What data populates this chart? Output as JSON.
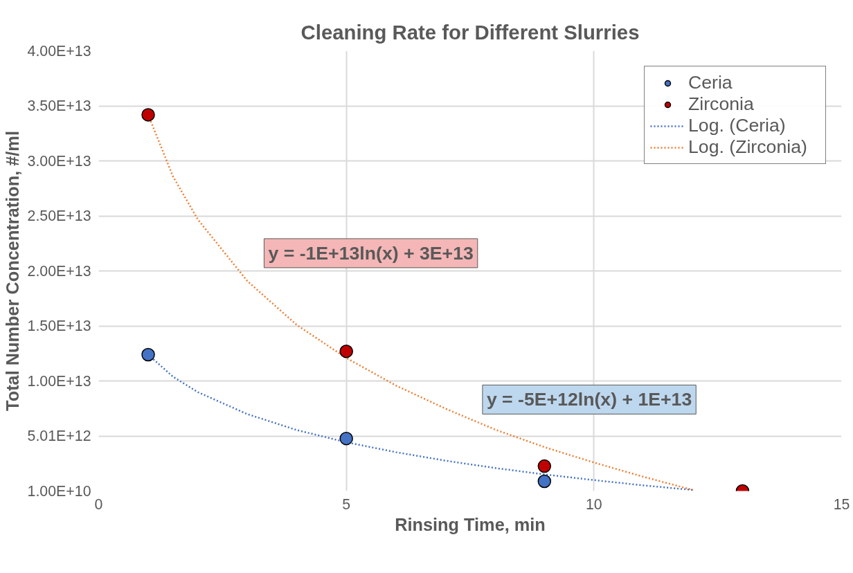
{
  "chart_data": {
    "type": "scatter",
    "title": "Cleaning Rate for Different Slurries",
    "xlabel": "Rinsing Time, min",
    "ylabel": "Total Number Concentration, #/ml",
    "xlim": [
      0,
      15
    ],
    "xticks": [
      0,
      5,
      10,
      15
    ],
    "ylim": [
      10000000000.0,
      40010000000000.0
    ],
    "yticks": [
      {
        "value": 10000000000.0,
        "label": "1.00E+10"
      },
      {
        "value": 5010000000000.0,
        "label": "5.01E+12"
      },
      {
        "value": 10010000000000.0,
        "label": "1.00E+13"
      },
      {
        "value": 15010000000000.0,
        "label": "1.50E+13"
      },
      {
        "value": 20010000000000.0,
        "label": "2.00E+13"
      },
      {
        "value": 25010000000000.0,
        "label": "2.50E+13"
      },
      {
        "value": 30010000000000.0,
        "label": "3.00E+13"
      },
      {
        "value": 35010000000000.0,
        "label": "3.50E+13"
      },
      {
        "value": 40010000000000.0,
        "label": "4.00E+13"
      }
    ],
    "grid": true,
    "legend": "top right",
    "series": [
      {
        "name": "Ceria",
        "marker": "circle",
        "color": "#4472c4",
        "x": [
          1,
          5,
          9
        ],
        "values": [
          12400000000000.0,
          4780000000000.0,
          890000000000.0
        ]
      },
      {
        "name": "Zirconia",
        "marker": "circle",
        "color": "#c00000",
        "x": [
          1,
          5,
          9,
          13
        ],
        "values": [
          34200000000000.0,
          12700000000000.0,
          2270000000000.0,
          10000000000.0
        ]
      },
      {
        "name": "Log. (Ceria)",
        "type": "line",
        "marker": "none",
        "line_style": "dotted",
        "color": "#4472c4",
        "x": [
          1,
          1.5,
          2,
          3,
          4,
          5,
          6,
          7,
          8,
          9,
          10,
          11,
          12
        ],
        "values": [
          12400000000000.0,
          10400000000000.0,
          9000000000000.0,
          7000000000000.0,
          5550000000000.0,
          4440000000000.0,
          3540000000000.0,
          2770000000000.0,
          2100000000000.0,
          1520000000000.0,
          1000000000000.0,
          520000000000.0,
          100000000000.0
        ]
      },
      {
        "name": "Log. (Zirconia)",
        "type": "line",
        "marker": "none",
        "line_style": "dotted",
        "color": "#ed7d31",
        "x": [
          1,
          1.5,
          2,
          3,
          4,
          5,
          6,
          7,
          8,
          9,
          10,
          11,
          12
        ],
        "values": [
          34200000000000.0,
          28600000000000.0,
          24700000000000.0,
          19100000000000.0,
          15100000000000.0,
          12100000000000.0,
          9600000000000.0,
          7500000000000.0,
          5600000000000.0,
          4000000000000.0,
          2600000000000.0,
          1300000000000.0,
          100000000000.0
        ]
      }
    ],
    "annotations": [
      "y = -1E+13ln(x) + 3E+13",
      "y = -5E+12ln(x) + 1E+13"
    ]
  }
}
